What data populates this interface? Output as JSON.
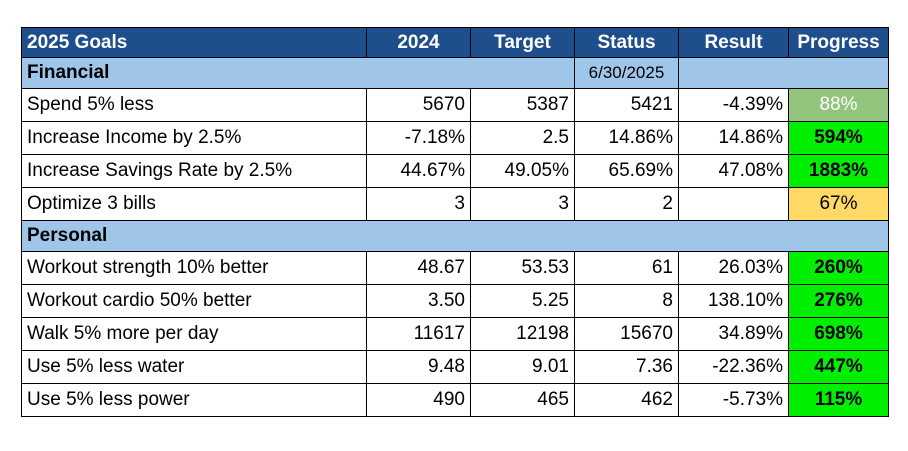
{
  "colors": {
    "header_bg": "#1f4e8c",
    "section_bg": "#9fc5e8",
    "progress_high": "#00ee00",
    "progress_mid": "#93c47d",
    "progress_low": "#ffd966"
  },
  "header": {
    "goals": "2025 Goals",
    "y2024": "2024",
    "target": "Target",
    "status": "Status",
    "result": "Result",
    "progress": "Progress"
  },
  "financial": {
    "label": "Financial",
    "date": "6/30/2025",
    "rows": [
      {
        "goal": "Spend 5% less",
        "y2024": "5670",
        "target": "5387",
        "status": "5421",
        "result": "-4.39%",
        "progress": "88%"
      },
      {
        "goal": "Increase Income by 2.5%",
        "y2024": "-7.18%",
        "target": "2.5",
        "status": "14.86%",
        "result": "14.86%",
        "progress": "594%"
      },
      {
        "goal": "Increase Savings Rate by 2.5%",
        "y2024": "44.67%",
        "target": "49.05%",
        "status": "65.69%",
        "result": "47.08%",
        "progress": "1883%"
      },
      {
        "goal": "Optimize 3 bills",
        "y2024": "3",
        "target": "3",
        "status": "2",
        "result": "",
        "progress": "67%"
      }
    ]
  },
  "personal": {
    "label": "Personal",
    "rows": [
      {
        "goal": "Workout strength 10% better",
        "y2024": "48.67",
        "target": "53.53",
        "status": "61",
        "result": "26.03%",
        "progress": "260%"
      },
      {
        "goal": "Workout cardio 50% better",
        "y2024": "3.50",
        "target": "5.25",
        "status": "8",
        "result": "138.10%",
        "progress": "276%"
      },
      {
        "goal": "Walk 5% more per day",
        "y2024": "11617",
        "target": "12198",
        "status": "15670",
        "result": "34.89%",
        "progress": "698%"
      },
      {
        "goal": "Use 5% less water",
        "y2024": "9.48",
        "target": "9.01",
        "status": "7.36",
        "result": "-22.36%",
        "progress": "447%"
      },
      {
        "goal": "Use 5% less power",
        "y2024": "490",
        "target": "465",
        "status": "462",
        "result": "-5.73%",
        "progress": "115%"
      }
    ]
  }
}
